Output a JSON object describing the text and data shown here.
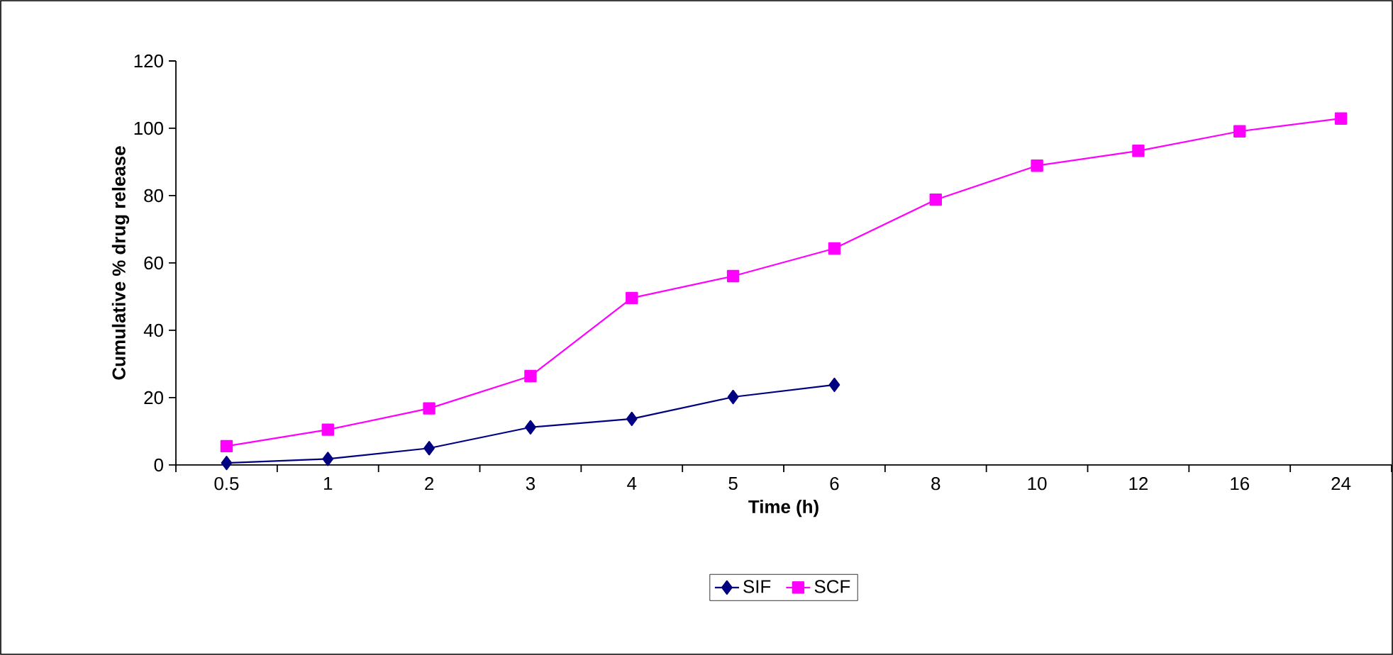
{
  "chart_data": {
    "type": "line",
    "xlabel": "Time (h)",
    "ylabel": "Cumulative % drug release",
    "categories": [
      "0.5",
      "1",
      "2",
      "3",
      "4",
      "5",
      "6",
      "8",
      "10",
      "12",
      "16",
      "24"
    ],
    "series": [
      {
        "name": "SIF",
        "color": "#000080",
        "marker": "diamond",
        "values": [
          0.6,
          1.8,
          5.0,
          11.2,
          13.7,
          20.2,
          23.8,
          null,
          null,
          null,
          null,
          null
        ]
      },
      {
        "name": "SCF",
        "color": "#ff00ff",
        "marker": "square",
        "values": [
          5.6,
          10.5,
          16.8,
          26.4,
          49.6,
          56.1,
          64.3,
          78.8,
          88.9,
          93.3,
          99.1,
          102.9
        ]
      }
    ],
    "ylim": [
      0,
      120
    ],
    "yticks": [
      0,
      20,
      40,
      60,
      80,
      100,
      120
    ],
    "grid": false,
    "legend": "bottom",
    "line_style": "solid"
  }
}
